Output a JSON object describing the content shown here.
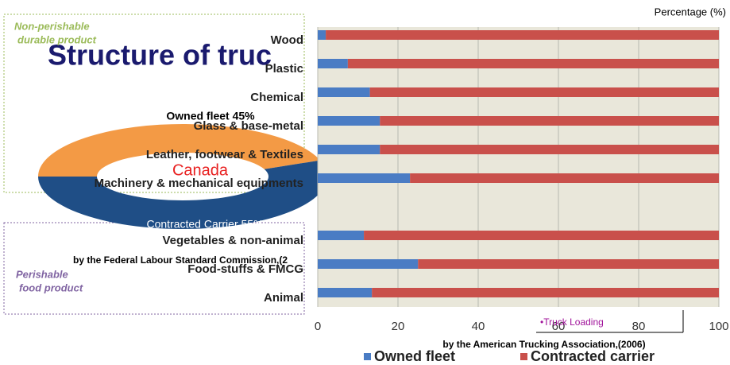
{
  "slide": {
    "title": "Structure of truc",
    "groups": [
      [
        "Non-perishable",
        "durable product"
      ],
      [
        "Perishable",
        "food product"
      ]
    ],
    "sources": [
      "by the Federal Labour Standard Commission,(2",
      "by the American Trucking Association,(2006)"
    ],
    "note": "•Truck Loading"
  },
  "chart_data": [
    {
      "type": "pie",
      "center_label": "Canada",
      "values": [
        45,
        55
      ],
      "value_labels": [
        "Owned fleet 45%",
        "Contracted Carrier 55%"
      ],
      "colors": [
        "#f39a45",
        "#1f4e86"
      ]
    },
    {
      "type": "bar",
      "stacked": true,
      "orientation": "horizontal",
      "x_label": "Percentage (%)",
      "categories": [
        "Wood",
        "Plastic",
        "Chemical",
        "Glass & base-metal",
        "Leather, footwear & Textiles",
        "Machinery & mechanical equipments",
        null,
        "Vegetables & non-animal",
        "Food-stuffs & FMCG",
        "Animal"
      ],
      "series": [
        {
          "name": "Owned fleet",
          "color": "#4a7cc4",
          "values": [
            2,
            7.5,
            13,
            15.5,
            15.5,
            23,
            null,
            11.5,
            25,
            13.5
          ]
        },
        {
          "name": "Contracted carrier",
          "color": "#c9504b",
          "values": [
            98,
            92.5,
            87,
            84.5,
            84.5,
            77,
            null,
            88.5,
            75,
            86.5
          ]
        }
      ],
      "xlim": [
        0,
        100
      ],
      "xticks": [
        0,
        20,
        40,
        60,
        80,
        100
      ],
      "grid": true,
      "legend": "bottom"
    }
  ]
}
